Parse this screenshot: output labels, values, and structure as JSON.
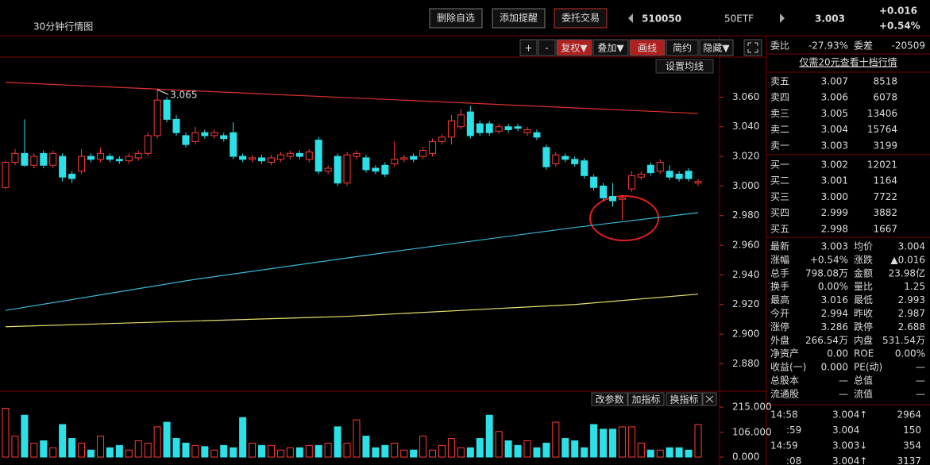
{
  "header": {
    "title": "30分钟行情图",
    "buttons": [
      "删除自选",
      "添加提醒",
      "委托交易"
    ],
    "code": "510050",
    "name": "50ETF",
    "price": "3.003",
    "change": "+0.016",
    "change_pct": "+0.54%"
  },
  "toolbar": [
    "+",
    "-",
    "复权▼",
    "叠加▼",
    "画线",
    "简约",
    "隐藏▼"
  ],
  "ma_button": "设置均线",
  "volume_buttons": [
    "改参数",
    "加指标",
    "换指标"
  ],
  "chart_data": {
    "type": "candlestick",
    "up_color": "#ff3a3a",
    "down_color": "#2ce0e8",
    "ohlc": [
      [
        2.999,
        3.017,
        2.998,
        3.016
      ],
      [
        3.016,
        3.025,
        3.014,
        3.022
      ],
      [
        3.022,
        3.045,
        3.013,
        3.014
      ],
      [
        3.014,
        3.022,
        3.012,
        3.02
      ],
      [
        3.022,
        3.024,
        3.012,
        3.014
      ],
      [
        3.014,
        3.024,
        3.012,
        3.022
      ],
      [
        3.02,
        3.022,
        3.003,
        3.006
      ],
      [
        3.008,
        3.01,
        3.002,
        3.005
      ],
      [
        3.01,
        3.025,
        3.008,
        3.02
      ],
      [
        3.02,
        3.022,
        3.016,
        3.018
      ],
      [
        3.018,
        3.026,
        3.016,
        3.022
      ],
      [
        3.02,
        3.022,
        3.016,
        3.018
      ],
      [
        3.018,
        3.02,
        3.015,
        3.017
      ],
      [
        3.017,
        3.022,
        3.015,
        3.02
      ],
      [
        3.019,
        3.024,
        3.017,
        3.022
      ],
      [
        3.022,
        3.036,
        3.02,
        3.034
      ],
      [
        3.034,
        3.065,
        3.032,
        3.058
      ],
      [
        3.058,
        3.06,
        3.043,
        3.045
      ],
      [
        3.045,
        3.048,
        3.034,
        3.036
      ],
      [
        3.034,
        3.036,
        3.026,
        3.028
      ],
      [
        3.03,
        3.04,
        3.028,
        3.036
      ],
      [
        3.036,
        3.038,
        3.032,
        3.034
      ],
      [
        3.034,
        3.038,
        3.032,
        3.036
      ],
      [
        3.034,
        3.036,
        3.03,
        3.032
      ],
      [
        3.036,
        3.043,
        3.018,
        3.02
      ],
      [
        3.02,
        3.022,
        3.016,
        3.018
      ],
      [
        3.018,
        3.021,
        3.016,
        3.019
      ],
      [
        3.019,
        3.021,
        3.015,
        3.017
      ],
      [
        3.016,
        3.021,
        3.014,
        3.019
      ],
      [
        3.018,
        3.023,
        3.016,
        3.021
      ],
      [
        3.02,
        3.024,
        3.018,
        3.022
      ],
      [
        3.022,
        3.024,
        3.018,
        3.02
      ],
      [
        3.018,
        3.025,
        3.016,
        3.023
      ],
      [
        3.031,
        3.033,
        3.008,
        3.01
      ],
      [
        3.01,
        3.014,
        3.008,
        3.012
      ],
      [
        3.02,
        3.022,
        3.0,
        3.002
      ],
      [
        3.002,
        3.023,
        3.0,
        3.021
      ],
      [
        3.02,
        3.024,
        3.018,
        3.022
      ],
      [
        3.019,
        3.021,
        3.009,
        3.011
      ],
      [
        3.012,
        3.014,
        3.008,
        3.01
      ],
      [
        3.014,
        3.016,
        3.006,
        3.008
      ],
      [
        3.015,
        3.03,
        3.013,
        3.018
      ],
      [
        3.018,
        3.021,
        3.016,
        3.019
      ],
      [
        3.02,
        3.022,
        3.016,
        3.018
      ],
      [
        3.02,
        3.026,
        3.018,
        3.024
      ],
      [
        3.022,
        3.032,
        3.02,
        3.03
      ],
      [
        3.03,
        3.035,
        3.028,
        3.033
      ],
      [
        3.033,
        3.048,
        3.028,
        3.044
      ],
      [
        3.04,
        3.052,
        3.038,
        3.048
      ],
      [
        3.05,
        3.054,
        3.032,
        3.034
      ],
      [
        3.042,
        3.044,
        3.034,
        3.036
      ],
      [
        3.042,
        3.044,
        3.034,
        3.036
      ],
      [
        3.037,
        3.042,
        3.035,
        3.04
      ],
      [
        3.04,
        3.042,
        3.036,
        3.038
      ],
      [
        3.04,
        3.042,
        3.037,
        3.039
      ],
      [
        3.036,
        3.04,
        3.034,
        3.038
      ],
      [
        3.036,
        3.038,
        3.031,
        3.033
      ],
      [
        3.026,
        3.028,
        3.011,
        3.013
      ],
      [
        3.015,
        3.023,
        3.013,
        3.021
      ],
      [
        3.02,
        3.022,
        3.016,
        3.018
      ],
      [
        3.018,
        3.02,
        3.013,
        3.015
      ],
      [
        3.017,
        3.019,
        3.005,
        3.007
      ],
      [
        3.006,
        3.008,
        2.997,
        2.999
      ],
      [
        3.0,
        3.002,
        2.99,
        2.992
      ],
      [
        2.993,
        3.002,
        2.986,
        2.99
      ],
      [
        2.991,
        2.994,
        2.977,
        2.992
      ],
      [
        2.998,
        3.01,
        2.996,
        3.007
      ],
      [
        3.006,
        3.01,
        3.004,
        3.008
      ],
      [
        3.014,
        3.016,
        3.007,
        3.009
      ],
      [
        3.01,
        3.018,
        3.008,
        3.016
      ],
      [
        3.01,
        3.014,
        3.004,
        3.006
      ],
      [
        3.008,
        3.01,
        3.003,
        3.005
      ],
      [
        3.01,
        3.012,
        3.003,
        3.005
      ],
      [
        3.002,
        3.005,
        3.0,
        3.003
      ]
    ],
    "volume": [
      210,
      90,
      180,
      60,
      70,
      40,
      140,
      80,
      60,
      30,
      90,
      40,
      50,
      30,
      70,
      60,
      130,
      150,
      80,
      60,
      50,
      45,
      30,
      50,
      40,
      170,
      60,
      50,
      50,
      30,
      40,
      40,
      50,
      50,
      60,
      130,
      60,
      160,
      90,
      40,
      50,
      60,
      30,
      30,
      90,
      30,
      50,
      80,
      40,
      40,
      80,
      180,
      110,
      70,
      50,
      70,
      40,
      60,
      150,
      80,
      70,
      40,
      140,
      120,
      120,
      130,
      130,
      60,
      30,
      30,
      40,
      40,
      30,
      140
    ],
    "ma_lines": [
      {
        "color": "#e03030",
        "x": [
          0,
          73
        ],
        "values": [
          3.07,
          3.049
        ]
      },
      {
        "color": "#3ab8d8",
        "x": [
          0,
          20,
          40,
          60,
          73
        ],
        "values": [
          2.916,
          2.937,
          2.955,
          2.972,
          2.982
        ]
      },
      {
        "color": "#e8e070",
        "x": [
          0,
          36,
          60,
          73
        ],
        "values": [
          2.905,
          2.912,
          2.92,
          2.927
        ]
      }
    ],
    "high_label": {
      "index": 16,
      "value": 3.065,
      "label": "3.065"
    },
    "ylim": [
      2.862,
      3.087
    ],
    "yticks": [
      {
        "value": 3.06,
        "label": "3.060"
      },
      {
        "value": 3.04,
        "label": "3.040"
      },
      {
        "value": 3.02,
        "label": "3.020"
      },
      {
        "value": 3.0,
        "label": "3.000"
      },
      {
        "value": 2.98,
        "label": "2.980"
      },
      {
        "value": 2.96,
        "label": "2.960"
      },
      {
        "value": 2.94,
        "label": "2.940"
      },
      {
        "value": 2.92,
        "label": "2.920"
      },
      {
        "value": 2.9,
        "label": "2.900"
      },
      {
        "value": 2.88,
        "label": "2.880"
      }
    ],
    "vlim": [
      0,
      215
    ],
    "vticks": [
      {
        "value": 215,
        "label": "215.000"
      },
      {
        "value": 106,
        "label": "106.000"
      },
      {
        "value": 0,
        "label": "0.000"
      }
    ]
  },
  "panel": {
    "ratio": [
      "委比",
      "-27.93%",
      "委差",
      "-20509"
    ],
    "promo": "仅需20元查看十档行情",
    "asks": [
      [
        "卖五",
        "3.007",
        "8518"
      ],
      [
        "卖四",
        "3.006",
        "6078"
      ],
      [
        "卖三",
        "3.005",
        "13406"
      ],
      [
        "卖二",
        "3.004",
        "15764"
      ],
      [
        "卖一",
        "3.003",
        "3199"
      ]
    ],
    "bids": [
      [
        "买一",
        "3.002",
        "12021"
      ],
      [
        "买二",
        "3.001",
        "1164"
      ],
      [
        "买三",
        "3.000",
        "7722"
      ],
      [
        "买四",
        "2.999",
        "3882"
      ],
      [
        "买五",
        "2.998",
        "1667"
      ]
    ],
    "stats": [
      [
        "最新",
        "3.003",
        "均价",
        "3.004"
      ],
      [
        "涨幅",
        "+0.54%",
        "涨跌",
        "▲0.016"
      ],
      [
        "总手",
        "798.08万",
        "金额",
        "23.98亿"
      ],
      [
        "换手",
        "0.00%",
        "量比",
        "1.25"
      ],
      [
        "最高",
        "3.016",
        "最低",
        "2.993"
      ],
      [
        "今开",
        "2.994",
        "昨收",
        "2.987"
      ],
      [
        "涨停",
        "3.286",
        "跌停",
        "2.688"
      ],
      [
        "外盘",
        "266.54万",
        "内盘",
        "531.54万"
      ],
      [
        "净资产",
        "0.00",
        "ROE",
        "0.00%"
      ],
      [
        "收益(一)",
        "0.000",
        "PE(动)",
        "—"
      ],
      [
        "总股本",
        "—",
        "总值",
        "—"
      ],
      [
        "流通股",
        "—",
        "流值",
        "—"
      ]
    ],
    "stat_colors": [
      [
        "#ff4a4a",
        "#ff4a4a"
      ],
      [
        "#ff4a4a",
        "#ff4a4a"
      ],
      [
        "#ffffff",
        "#2ce0e8"
      ],
      [
        "#ffffff",
        "#ff4a4a"
      ],
      [
        "#ff4a4a",
        "#ff4a4a"
      ],
      [
        "#ff4a4a",
        "#ffffff"
      ],
      [
        "#ff4a4a",
        "#2cd02c"
      ],
      [
        "#ff4a4a",
        "#2cd02c"
      ],
      [
        "#ffffff",
        "#ffffff"
      ],
      [
        "#ffffff",
        "#ffffff"
      ],
      [
        "#ffffff",
        "#ffffff"
      ],
      [
        "#ffffff",
        "#ffffff"
      ]
    ],
    "trades": [
      [
        "14:58",
        "3.004↑",
        "2964"
      ],
      [
        ":59",
        "3.004",
        "150"
      ],
      [
        "14:59",
        "3.003↓",
        "354"
      ],
      [
        ":08",
        "3.004↑",
        "3137"
      ]
    ],
    "trade_colors": [
      "#ff4a4a",
      "#ff4a4a",
      "#2cd02c",
      "#ff4a4a"
    ]
  }
}
